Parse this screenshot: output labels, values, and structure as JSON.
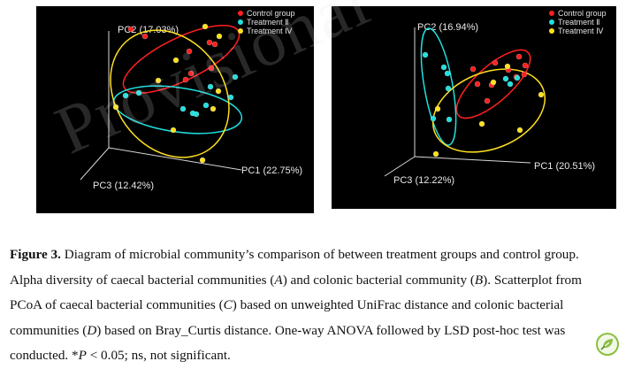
{
  "watermark": "Provisional",
  "colors": {
    "control": "#ff2020",
    "treatment2": "#20e0e0",
    "treatment4": "#ffe020",
    "logo": "#8bbf3f"
  },
  "chart_data": [
    {
      "type": "scatter",
      "panel": "C",
      "xlabel": "PC1 (22.75%)",
      "ylabel": "PC2 (17.03%)",
      "zlabel": "PC3 (12.42%)",
      "legend": [
        "Control group",
        "Treatment Ⅱ",
        "Treatment Ⅳ"
      ],
      "legend_position": "top-right",
      "background": "#000000",
      "series": [
        {
          "name": "Control group",
          "points": [
            [
              107,
              26
            ],
            [
              123,
              34
            ],
            [
              173,
              51
            ],
            [
              175,
              76
            ],
            [
              169,
              83
            ],
            [
              198,
              70
            ],
            [
              196,
              41
            ],
            [
              202,
              43
            ]
          ]
        },
        {
          "name": "Treatment Ⅱ",
          "points": [
            [
              101,
              101
            ],
            [
              116,
              98
            ],
            [
              166,
              116
            ],
            [
              177,
              121
            ],
            [
              181,
              122
            ],
            [
              192,
              112
            ],
            [
              220,
              103
            ],
            [
              197,
              91
            ],
            [
              225,
              80
            ]
          ]
        },
        {
          "name": "Treatment Ⅳ",
          "points": [
            [
              191,
              23
            ],
            [
              207,
              34
            ],
            [
              158,
              61
            ],
            [
              138,
              84
            ],
            [
              155,
              140
            ],
            [
              90,
              114
            ],
            [
              206,
              96
            ],
            [
              200,
              116
            ],
            [
              188,
              174
            ]
          ]
        }
      ]
    },
    {
      "type": "scatter",
      "panel": "D",
      "xlabel": "PC1 (20.51%)",
      "ylabel": "PC2 (16.94%)",
      "zlabel": "PC3 (12.22%)",
      "legend": [
        "Control group",
        "Treatment Ⅱ",
        "Treatment Ⅳ"
      ],
      "legend_position": "top-right",
      "background": "#000000",
      "series": [
        {
          "name": "Control group",
          "points": [
            [
              185,
              64
            ],
            [
              200,
              72
            ],
            [
              212,
              57
            ],
            [
              219,
              67
            ],
            [
              218,
              77
            ],
            [
              160,
              71
            ],
            [
              165,
              88
            ],
            [
              181,
              89
            ],
            [
              209,
              80
            ],
            [
              176,
              107
            ]
          ]
        },
        {
          "name": "Treatment Ⅱ",
          "points": [
            [
              106,
              55
            ],
            [
              127,
              69
            ],
            [
              131,
              76
            ],
            [
              132,
              93
            ],
            [
              115,
              127
            ],
            [
              133,
              128
            ],
            [
              197,
              82
            ],
            [
              202,
              88
            ],
            [
              210,
              81
            ]
          ]
        },
        {
          "name": "Treatment Ⅳ",
          "points": [
            [
              120,
              116
            ],
            [
              199,
              68
            ],
            [
              183,
              86
            ],
            [
              237,
              100
            ],
            [
              213,
              140
            ],
            [
              170,
              133
            ],
            [
              118,
              167
            ]
          ]
        }
      ]
    }
  ],
  "caption": {
    "label": "Figure 3.",
    "parts": [
      {
        "t": " Diagram of microbial community’s comparison of between treatment groups and control group. Alpha diversity of caecal bacterial communities ("
      },
      {
        "t": "A",
        "i": true
      },
      {
        "t": ") and colonic bacterial community ("
      },
      {
        "t": "B",
        "i": true
      },
      {
        "t": "). Scatterplot from PCoA of caecal bacterial communities ("
      },
      {
        "t": "C",
        "i": true
      },
      {
        "t": ") based on unweighted UniFrac distance and colonic bacterial communities ("
      },
      {
        "t": "D",
        "i": true
      },
      {
        "t": ") based on Bray_Curtis distance. One-way ANOVA followed by LSD post-hoc test was conducted. *"
      },
      {
        "t": "P",
        "i": true
      },
      {
        "t": " < 0.05; ns, not significant."
      }
    ]
  }
}
